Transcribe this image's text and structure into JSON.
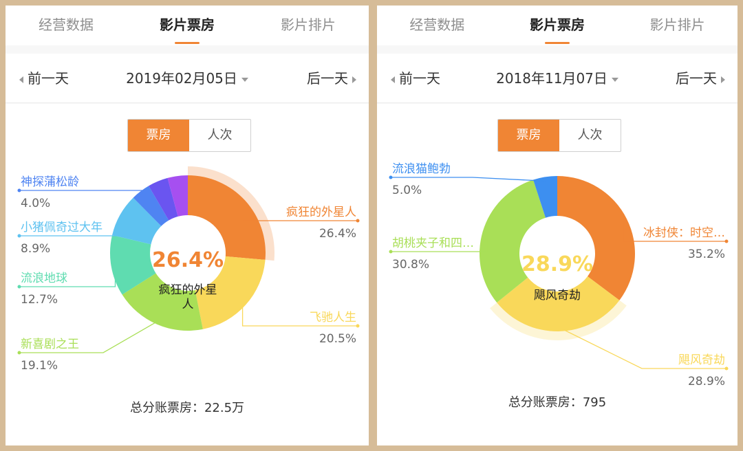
{
  "tabs": [
    "经营数据",
    "影片票房",
    "影片排片"
  ],
  "active_tab": 1,
  "panels": [
    {
      "date_prev": "前一天",
      "date_next": "后一天",
      "date": "2019年02月05日",
      "toggle": [
        "票房",
        "人次"
      ],
      "center_value": "26.4%",
      "center_line1": "疯狂的外星",
      "center_line2": "人",
      "total_label": "总分账票房：",
      "total_value": "22.5万",
      "chart_data": {
        "type": "pie",
        "donut": true,
        "categories": [
          "疯狂的外星人",
          "飞驰人生",
          "新喜剧之王",
          "流浪地球",
          "小猪佩奇过大年",
          "神探蒲松龄",
          ""
        ],
        "values": [
          26.4,
          20.5,
          19.1,
          12.7,
          8.9,
          4.0,
          8.4
        ],
        "value_labels": [
          "26.4%",
          "20.5%",
          "19.1%",
          "12.7%",
          "8.9%",
          "4.0%",
          ""
        ],
        "colors": [
          "#f08534",
          "#f9d85a",
          "#a9df57",
          "#5fdcb0",
          "#5ec2f0",
          "#4f84f2",
          "#6a55f0"
        ],
        "extra_colors": [
          "#a64ff0"
        ],
        "highlight_index": 0
      }
    },
    {
      "date_prev": "前一天",
      "date_next": "后一天",
      "date": "2018年11月07日",
      "toggle": [
        "票房",
        "人次"
      ],
      "center_value": "28.9%",
      "center_line1": "飓风奇劫",
      "center_line2": "",
      "total_label": "总分账票房：",
      "total_value": "795",
      "chart_data": {
        "type": "pie",
        "donut": true,
        "categories": [
          "冰封侠：时空…",
          "飓风奇劫",
          "胡桃夹子和四…",
          "流浪猫鲍勃"
        ],
        "values": [
          35.2,
          28.9,
          30.8,
          5.0
        ],
        "value_labels": [
          "35.2%",
          "28.9%",
          "30.8%",
          "5.0%"
        ],
        "colors": [
          "#f08534",
          "#f9d85a",
          "#a9df57",
          "#3d8ff0"
        ],
        "highlight_index": 1
      }
    }
  ]
}
